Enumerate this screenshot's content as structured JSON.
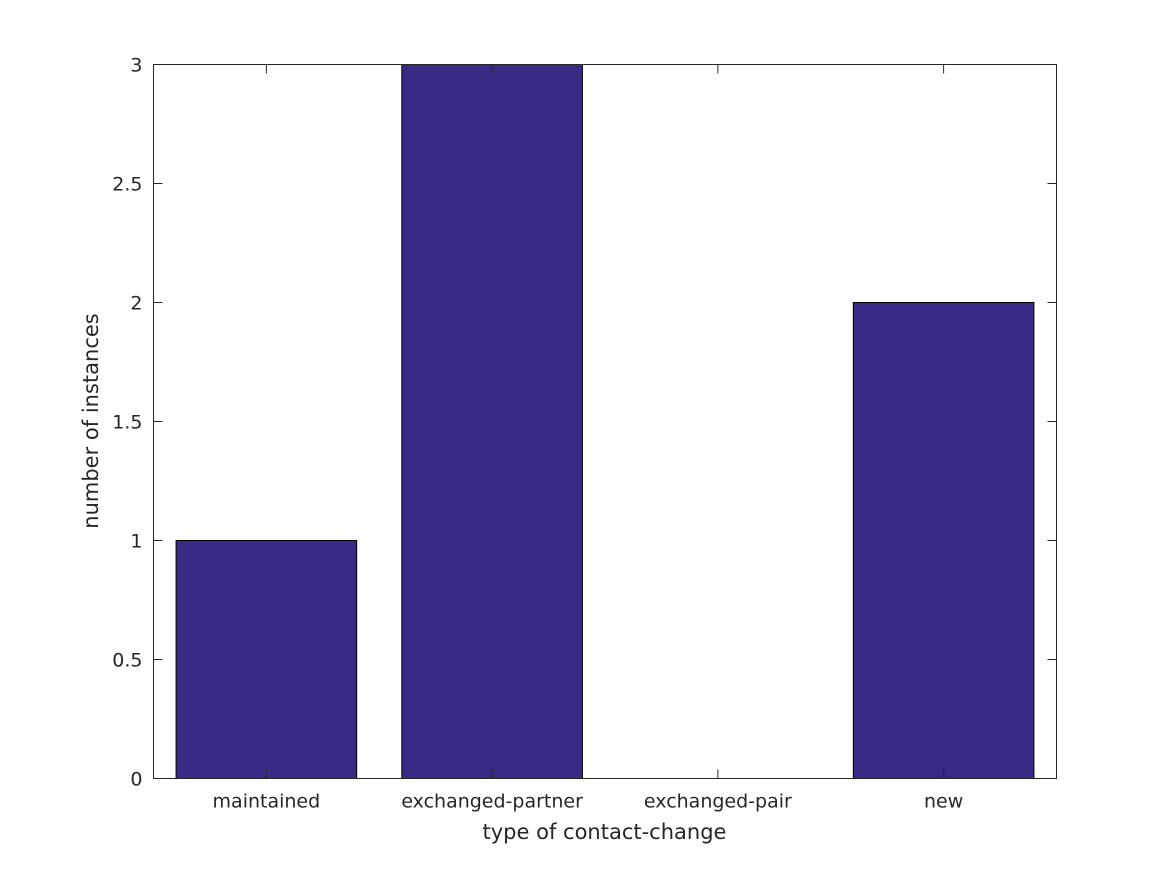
{
  "chart_data": {
    "type": "bar",
    "title": "",
    "xlabel": "type of contact-change",
    "ylabel": "number of instances",
    "categories": [
      "maintained",
      "exchanged-partner",
      "exchanged-pair",
      "new"
    ],
    "values": [
      1,
      3,
      0,
      2
    ],
    "ylim": [
      0,
      3
    ],
    "yticks": [
      0,
      0.5,
      1,
      1.5,
      2,
      2.5,
      3
    ],
    "ytick_labels": [
      "0",
      "0.5",
      "1",
      "1.5",
      "2",
      "2.5",
      "3"
    ],
    "grid": false,
    "legend": "none",
    "bar_color": "#372b85",
    "bar_edge_color": "#000000",
    "axis_color": "#262626"
  }
}
